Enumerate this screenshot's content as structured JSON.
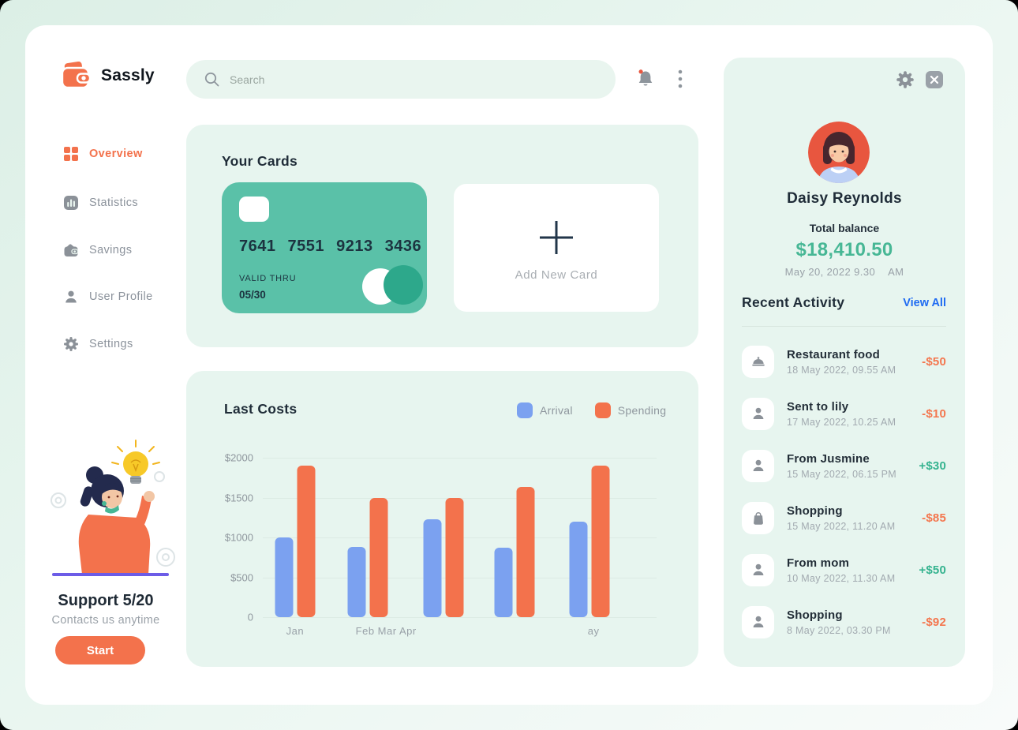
{
  "app": {
    "name": "Sassly"
  },
  "header": {
    "search_placeholder": "Search"
  },
  "sidebar": {
    "items": [
      {
        "label": "Overview",
        "active": true
      },
      {
        "label": "Statistics",
        "active": false
      },
      {
        "label": "Savings",
        "active": false
      },
      {
        "label": "User Profile",
        "active": false
      },
      {
        "label": "Settings",
        "active": false
      }
    ],
    "support": {
      "title": "Support 5/20",
      "subtitle": "Contacts us anytime",
      "button_label": "Start"
    }
  },
  "cards": {
    "section_title": "Your Cards",
    "card": {
      "number": "7641 7551 9213 3436",
      "valid_thru_label": "VALID THRU",
      "valid_thru": "05/30"
    },
    "add_new_label": "Add New Card"
  },
  "chart_data": {
    "type": "bar",
    "title": "Last Costs",
    "categories": [
      "Jan",
      "Feb",
      "Mar",
      "Apr",
      "May"
    ],
    "series": [
      {
        "name": "Arrival",
        "color": "#7ba1f0",
        "values": [
          1000,
          880,
          1230,
          870,
          1200
        ]
      },
      {
        "name": "Spending",
        "color": "#f3724c",
        "values": [
          1900,
          1500,
          1500,
          1630,
          1900
        ]
      }
    ],
    "ylim": [
      0,
      2000
    ],
    "y_tick_labels": [
      "$2000",
      "$1500",
      "$1000",
      "$500",
      "0"
    ],
    "x_tick_labels_displayed": [
      "Jan",
      "Feb Mar Apr",
      "ay"
    ],
    "grid": true,
    "legend_position": "top-right"
  },
  "profile": {
    "name": "Daisy Reynolds",
    "balance_label": "Total balance",
    "balance": "$18,410.50",
    "date": "May 20, 2022 9.30",
    "meridiem": "AM"
  },
  "activity": {
    "title": "Recent Activity",
    "view_all_label": "View All",
    "items": [
      {
        "title": "Restaurant food",
        "datetime": "18 May 2022, 09.55 AM",
        "amount": "-$50",
        "direction": "out",
        "icon": "food"
      },
      {
        "title": "Sent to lily",
        "datetime": "17 May 2022, 10.25 AM",
        "amount": "-$10",
        "direction": "out",
        "icon": "person"
      },
      {
        "title": "From Jusmine",
        "datetime": "15 May 2022, 06.15 PM",
        "amount": "+$30",
        "direction": "in",
        "icon": "person"
      },
      {
        "title": "Shopping",
        "datetime": "15 May 2022, 11.20 AM",
        "amount": "-$85",
        "direction": "out",
        "icon": "bag"
      },
      {
        "title": "From mom",
        "datetime": "10 May 2022, 11.30 AM",
        "amount": "+$50",
        "direction": "in",
        "icon": "person"
      },
      {
        "title": "Shopping",
        "datetime": "8 May 2022, 03.30 PM",
        "amount": "-$92",
        "direction": "out",
        "icon": "person"
      }
    ]
  },
  "colors": {
    "accent_orange": "#f3724c",
    "teal_card": "#5ac1a8",
    "arrival_blue": "#7ba1f0",
    "positive_green": "#35b38f",
    "negative_orange": "#f4764e",
    "link_blue": "#1f6bf2",
    "balance_green": "#47b795"
  }
}
